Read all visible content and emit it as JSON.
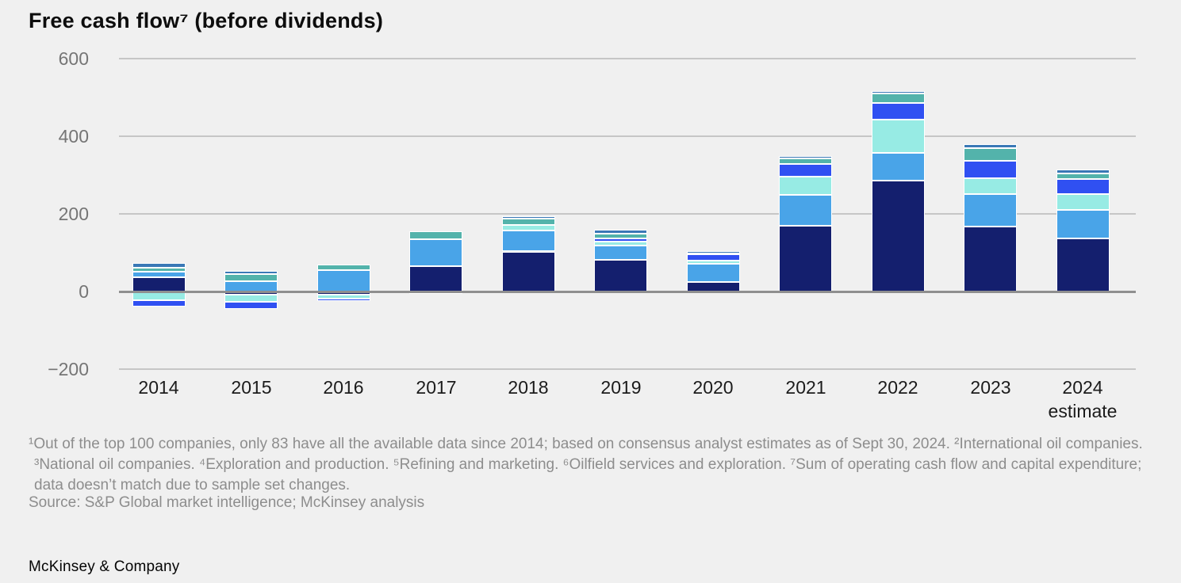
{
  "title": "Free cash flow⁷ (before dividends)",
  "footnotes": {
    "body": "¹Out of the top 100 companies, only 83 have all the available data since 2014; based on consensus analyst estimates as of Sept 30, 2024. ²International oil companies. ³National oil companies. ⁴Exploration and production. ⁵Refining and marketing. ⁶Oilfield services and exploration. ⁷Sum of operating cash flow and capital expenditure; data doesn’t match due to sample set changes.",
    "source": "Source: S&P Global market intelligence; McKinsey analysis"
  },
  "brand": "McKinsey & Company",
  "colors": {
    "background": "#f0f0f0",
    "gridline": "#c6c6c6",
    "zero_line": "#8f8f8f",
    "axis_text": "#757575",
    "category_text": "#1b1b1b",
    "footnote_text": "#8d8d8d"
  },
  "chart_data": {
    "type": "bar",
    "stacked": true,
    "title": "Free cash flow⁷ (before dividends)",
    "xlabel": "",
    "ylabel": "",
    "ylim": [
      -200,
      600
    ],
    "grid": true,
    "legend": "none",
    "categories": [
      "2014",
      "2015",
      "2016",
      "2017",
      "2018",
      "2019",
      "2020",
      "2021",
      "2022",
      "2023",
      "2024"
    ],
    "last_category_sublabel": "estimate",
    "yticks": {
      "values": [
        600,
        400,
        200,
        0,
        -200
      ],
      "labels": [
        "600",
        "400",
        "200",
        "0",
        "−200"
      ]
    },
    "series": [
      {
        "name": "dark-navy",
        "color": "#141f6e",
        "values": [
          37,
          -8,
          -8,
          65,
          103,
          82,
          25,
          169,
          286,
          167,
          137
        ]
      },
      {
        "name": "sky-blue",
        "color": "#49a4e8",
        "values": [
          15,
          27,
          55,
          70,
          54,
          37,
          46,
          80,
          71,
          84,
          73
        ]
      },
      {
        "name": "light-cyan",
        "color": "#97ebe4",
        "values": [
          -22,
          -18,
          -10,
          0,
          14,
          10,
          8,
          47,
          86,
          41,
          41
        ]
      },
      {
        "name": "royal-blue",
        "color": "#3050f2",
        "values": [
          -16,
          -18,
          -6,
          -6,
          0,
          8,
          16,
          33,
          43,
          45,
          39
        ]
      },
      {
        "name": "teal",
        "color": "#53b3ab",
        "values": [
          10,
          18,
          14,
          20,
          16,
          12,
          4,
          14,
          24,
          33,
          14
        ]
      },
      {
        "name": "steel-blue",
        "color": "#3a78b6",
        "values": [
          12,
          8,
          0,
          0,
          6,
          10,
          6,
          6,
          6,
          10,
          10
        ]
      }
    ]
  }
}
